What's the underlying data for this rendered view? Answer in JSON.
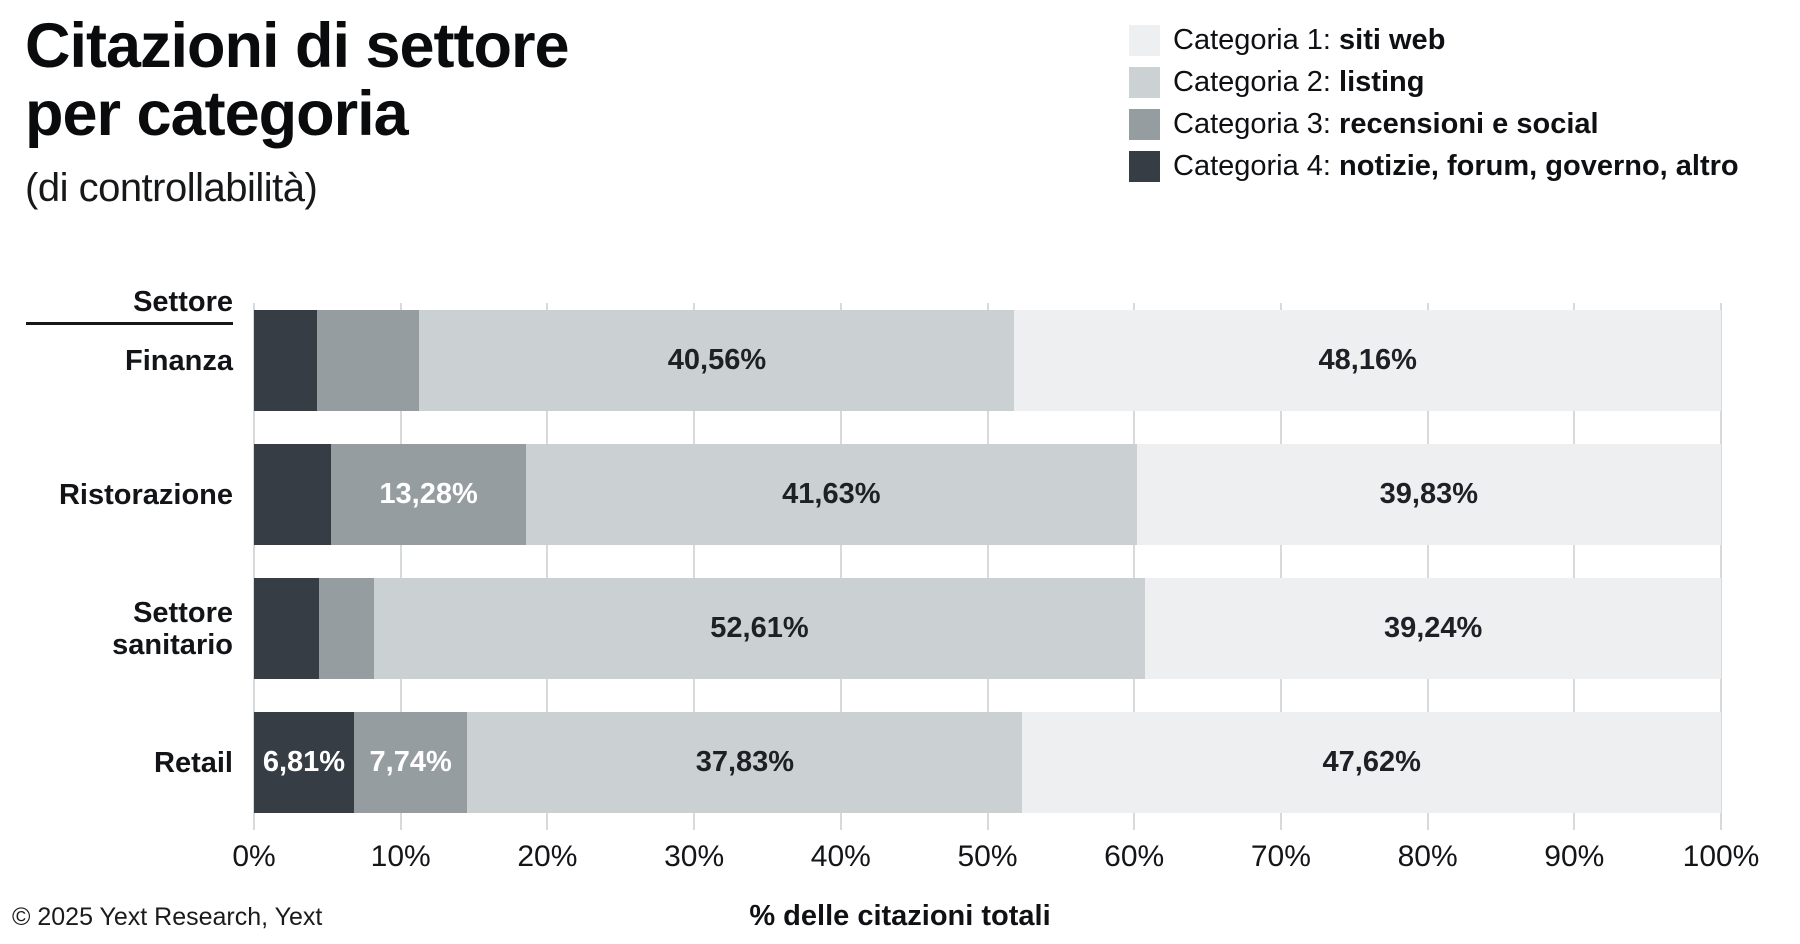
{
  "title": {
    "line1": "Citazioni di settore",
    "line2": "per categoria",
    "subtitle": "(di controllabilità)"
  },
  "legend": {
    "items": [
      {
        "prefix": "Categoria 1: ",
        "bold": "siti web",
        "color": "#edeff0"
      },
      {
        "prefix": "Categoria 2: ",
        "bold": "listing",
        "color": "#ccd1d4"
      },
      {
        "prefix": "Categoria 3: ",
        "bold": "recensioni e social",
        "color": "#969da0"
      },
      {
        "prefix": "Categoria 4: ",
        "bold": "notizie, forum, governo, altro",
        "color": "#363d45"
      }
    ]
  },
  "chart_data": {
    "type": "bar",
    "variant": "stacked-horizontal",
    "title": "Citazioni di settore per categoria (di controllabilità)",
    "xlabel": "% delle citazioni totali",
    "xlim": [
      0,
      100
    ],
    "x_ticks": [
      "0%",
      "10%",
      "20%",
      "30%",
      "40%",
      "50%",
      "60%",
      "70%",
      "80%",
      "90%",
      "100%"
    ],
    "grid": true,
    "legend_position": "top-right",
    "row_header": "Settore",
    "categories": [
      "Finanza",
      "Ristorazione",
      "Settore sanitario",
      "Retail"
    ],
    "row_label_lines": [
      [
        "Finanza"
      ],
      [
        "Ristorazione"
      ],
      [
        "Settore",
        "sanitario"
      ],
      [
        "Retail"
      ]
    ],
    "series": [
      {
        "name": "Categoria 4: notizie, forum, governo, altro",
        "color": "#363d45",
        "label_color": "#ffffff",
        "values": [
          4.3,
          5.26,
          4.4,
          6.81
        ],
        "bar_labels": [
          "",
          "",
          "",
          "6,81%"
        ]
      },
      {
        "name": "Categoria 3: recensioni e social",
        "color": "#969da0",
        "label_color": "#ffffff",
        "values": [
          6.98,
          13.28,
          3.75,
          7.74
        ],
        "bar_labels": [
          "",
          "13,28%",
          "",
          "7,74%"
        ]
      },
      {
        "name": "Categoria 2: listing",
        "color": "#cbd0d3",
        "label_color": "#1d2126",
        "values": [
          40.56,
          41.63,
          52.61,
          37.83
        ],
        "bar_labels": [
          "40,56%",
          "41,63%",
          "52,61%",
          "37,83%"
        ]
      },
      {
        "name": "Categoria 1: siti web",
        "color": "#edeff0",
        "label_color": "#1d2126",
        "values": [
          48.16,
          39.83,
          39.24,
          47.62
        ],
        "bar_labels": [
          "48,16%",
          "39,83%",
          "39,24%",
          "47,62%"
        ]
      }
    ]
  },
  "footer": {
    "copyright": "© 2025 Yext Research, Yext"
  }
}
